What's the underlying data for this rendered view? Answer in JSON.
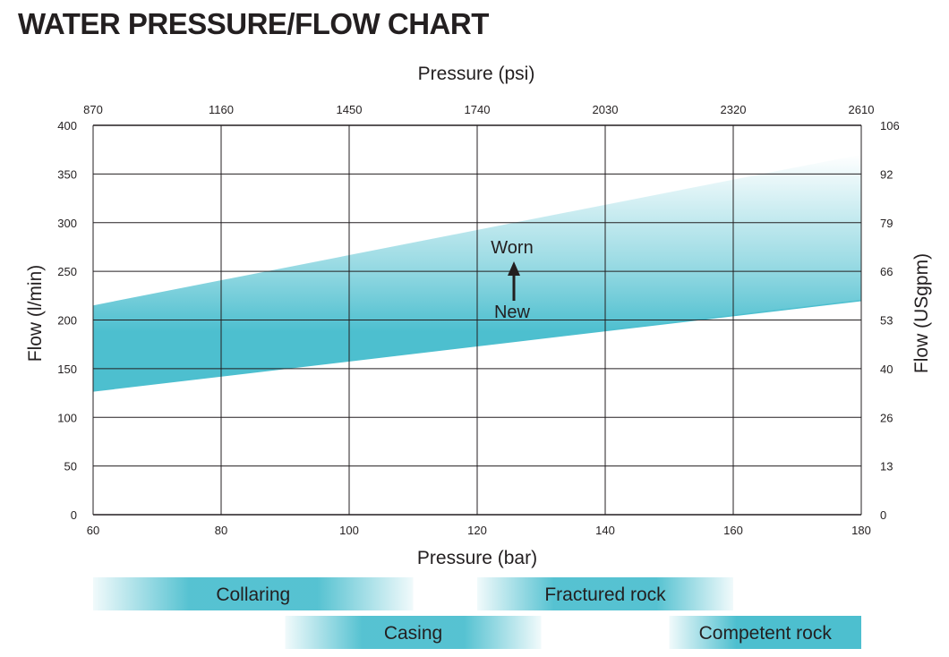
{
  "page": {
    "title": "WATER PRESSURE/FLOW CHART"
  },
  "chart_data": {
    "type": "area",
    "title": "WATER PRESSURE/FLOW CHART",
    "xlabel": "Pressure (bar)",
    "x2label": "Pressure (psi)",
    "ylabel": "Flow (l/min)",
    "y2label": "Flow (USgpm)",
    "xlim": [
      60,
      180
    ],
    "ylim": [
      0,
      400
    ],
    "grid": true,
    "x_ticks": [
      60,
      80,
      100,
      120,
      140,
      160,
      180
    ],
    "x2_ticks": [
      "870",
      "1160",
      "1450",
      "1740",
      "2030",
      "2320",
      "2610"
    ],
    "y_ticks": [
      0,
      50,
      100,
      150,
      200,
      250,
      300,
      350,
      400
    ],
    "y2_ticks": [
      "0",
      "13",
      "26",
      "40",
      "53",
      "66",
      "79",
      "92",
      "106"
    ],
    "series": [
      {
        "name": "New",
        "x": [
          60,
          180
        ],
        "y": [
          127,
          220
        ]
      },
      {
        "name": "Worn",
        "x": [
          60,
          180
        ],
        "y": [
          215,
          370
        ]
      }
    ],
    "annotations": {
      "upper": "Worn",
      "lower": "New"
    },
    "fill_color": "#4dbfcf",
    "ranges": [
      {
        "label": "Collaring",
        "x": [
          60,
          110
        ],
        "row": 1
      },
      {
        "label": "Fractured rock",
        "x": [
          120,
          160
        ],
        "row": 1
      },
      {
        "label": "Casing",
        "x": [
          90,
          130
        ],
        "row": 2
      },
      {
        "label": "Competent rock",
        "x": [
          150,
          180
        ],
        "row": 2
      }
    ]
  }
}
